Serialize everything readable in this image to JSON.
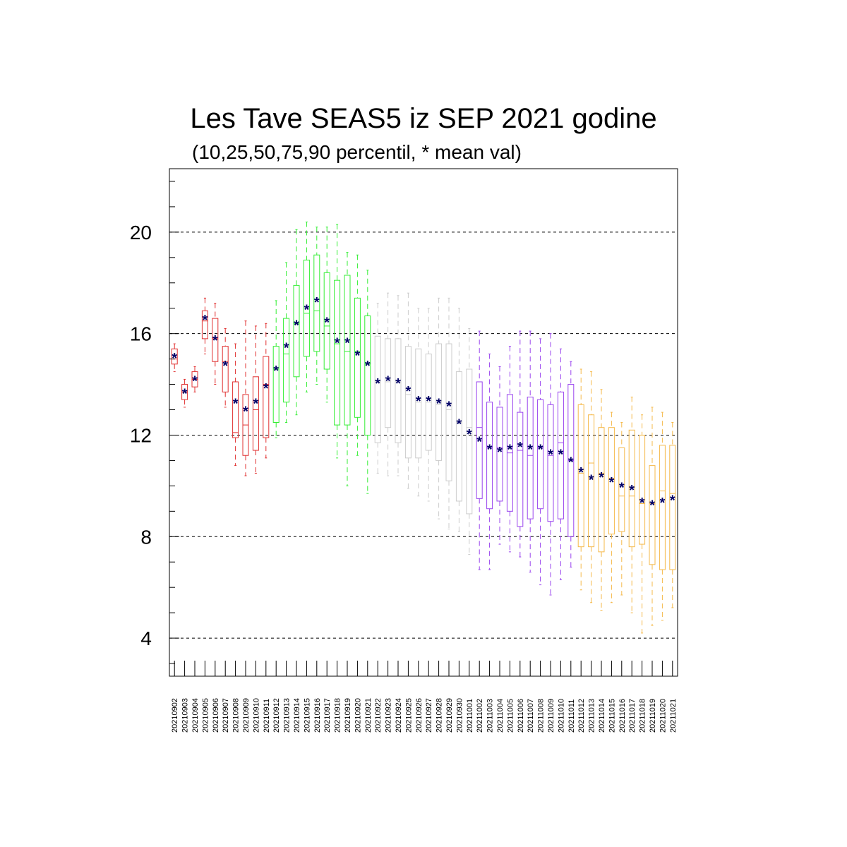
{
  "chart_data": {
    "type": "box",
    "title": "Les Tave SEAS5 iz SEP 2021 godine",
    "subtitle": "(10,25,50,75,90 percentil, * mean val)",
    "ylim": [
      2.5,
      22.5
    ],
    "yticks": [
      4,
      8,
      12,
      16,
      20
    ],
    "grid": "dashed horizontal at major ticks",
    "series": [
      {
        "color": "#e03030",
        "dates": [
          "20210902",
          "20210903",
          "20210904",
          "20210905",
          "20210906",
          "20210907",
          "20210908",
          "20210909",
          "20210910",
          "20210911"
        ],
        "p10": [
          14.5,
          13.1,
          13.7,
          15.2,
          14.0,
          13.1,
          10.8,
          10.4,
          10.5,
          11.1
        ],
        "p25": [
          14.8,
          13.4,
          13.9,
          15.8,
          14.9,
          13.7,
          11.9,
          11.2,
          11.4,
          11.9
        ],
        "p50": [
          15.0,
          13.7,
          14.2,
          16.5,
          15.8,
          14.9,
          12.1,
          12.4,
          13.0,
          14.0
        ],
        "p75": [
          15.4,
          14.0,
          14.5,
          16.9,
          16.6,
          15.5,
          14.1,
          13.6,
          14.3,
          15.1
        ],
        "p90": [
          15.6,
          14.2,
          14.7,
          17.4,
          17.2,
          16.2,
          15.6,
          16.5,
          16.3,
          16.4
        ],
        "mean": [
          15.1,
          13.7,
          14.2,
          16.6,
          15.8,
          14.8,
          13.3,
          13.0,
          13.3,
          13.9
        ]
      },
      {
        "color": "#33ee33",
        "dates": [
          "20210912",
          "20210913",
          "20210914",
          "20210915",
          "20210916",
          "20210917",
          "20210918",
          "20210919",
          "20210920",
          "20210921"
        ],
        "p10": [
          11.9,
          12.5,
          12.8,
          13.7,
          14.0,
          13.3,
          11.1,
          10.0,
          11.2,
          9.7
        ],
        "p25": [
          12.5,
          13.3,
          14.3,
          15.1,
          15.3,
          14.6,
          12.4,
          12.4,
          12.7,
          12.0
        ],
        "p50": [
          14.6,
          15.2,
          16.4,
          16.8,
          16.9,
          16.3,
          15.6,
          15.3,
          15.3,
          14.8
        ],
        "p75": [
          15.5,
          16.6,
          17.9,
          18.9,
          19.1,
          18.4,
          18.1,
          18.3,
          17.4,
          16.7
        ],
        "p90": [
          17.3,
          18.8,
          20.1,
          20.4,
          20.2,
          20.2,
          20.3,
          19.2,
          19.1,
          18.5
        ],
        "mean": [
          14.6,
          15.5,
          16.4,
          17.0,
          17.3,
          16.5,
          15.7,
          15.7,
          15.2,
          14.8
        ]
      },
      {
        "color": "#cccccc",
        "dates": [
          "20210922",
          "20210923",
          "20210924",
          "20210925",
          "20210926",
          "20210927",
          "20210928",
          "20210929",
          "20210930",
          "20211001"
        ],
        "p10": [
          10.5,
          10.4,
          10.4,
          9.9,
          9.6,
          9.4,
          8.7,
          8.3,
          8.2,
          7.3
        ],
        "p25": [
          11.7,
          12.3,
          11.7,
          11.1,
          11.1,
          11.4,
          11.0,
          10.2,
          9.4,
          8.9
        ],
        "p50": [
          14.1,
          14.1,
          14.1,
          13.6,
          13.3,
          13.3,
          13.2,
          13.0,
          12.5,
          12.3
        ],
        "p75": [
          15.9,
          15.8,
          15.8,
          15.5,
          15.4,
          15.2,
          15.6,
          15.6,
          14.5,
          14.6
        ],
        "p90": [
          17.2,
          17.6,
          17.5,
          17.6,
          17.0,
          17.0,
          17.4,
          17.4,
          17.0,
          16.2
        ],
        "mean": [
          14.1,
          14.2,
          14.1,
          13.8,
          13.4,
          13.4,
          13.3,
          13.2,
          12.5,
          12.1
        ]
      },
      {
        "color": "#9944ee",
        "dates": [
          "20211002",
          "20211003",
          "20211004",
          "20211005",
          "20211006",
          "20211007",
          "20211008",
          "20211009",
          "20211010",
          "20211011"
        ],
        "p10": [
          6.7,
          6.7,
          7.7,
          7.4,
          7.2,
          6.6,
          6.1,
          5.7,
          6.3,
          6.8
        ],
        "p25": [
          9.5,
          9.1,
          9.4,
          9.0,
          8.4,
          8.7,
          9.1,
          8.6,
          8.7,
          8.0
        ],
        "p50": [
          12.3,
          11.5,
          11.5,
          11.3,
          11.4,
          11.2,
          11.5,
          11.2,
          11.7,
          11.0
        ],
        "p75": [
          14.1,
          13.3,
          13.1,
          13.6,
          12.9,
          13.5,
          13.4,
          13.2,
          13.7,
          14.0
        ],
        "p90": [
          16.1,
          15.2,
          14.7,
          15.5,
          16.1,
          16.1,
          15.8,
          16.0,
          15.4,
          14.9
        ],
        "mean": [
          11.8,
          11.5,
          11.4,
          11.5,
          11.6,
          11.5,
          11.5,
          11.3,
          11.3,
          11.0
        ]
      },
      {
        "color": "#f5b94a",
        "dates": [
          "20211012",
          "20211013",
          "20211014",
          "20211015",
          "20211016",
          "20211017",
          "20211018",
          "20211019",
          "20211020",
          "20211021"
        ],
        "p10": [
          5.9,
          5.4,
          5.1,
          5.4,
          5.7,
          5.0,
          4.2,
          4.5,
          4.7,
          5.2
        ],
        "p25": [
          7.6,
          7.6,
          7.4,
          8.1,
          8.2,
          7.6,
          7.7,
          6.9,
          6.7,
          6.7
        ],
        "p50": [
          10.5,
          10.9,
          10.5,
          10.3,
          9.6,
          9.6,
          9.3,
          9.3,
          9.8,
          9.7
        ],
        "p75": [
          13.2,
          12.8,
          12.3,
          12.3,
          11.5,
          12.2,
          12.0,
          10.8,
          11.6,
          11.6
        ],
        "p90": [
          14.6,
          14.5,
          13.8,
          12.9,
          12.5,
          13.5,
          12.8,
          13.1,
          12.9,
          12.5
        ],
        "mean": [
          10.6,
          10.3,
          10.4,
          10.2,
          10.0,
          9.9,
          9.4,
          9.3,
          9.4,
          9.5
        ]
      }
    ]
  }
}
